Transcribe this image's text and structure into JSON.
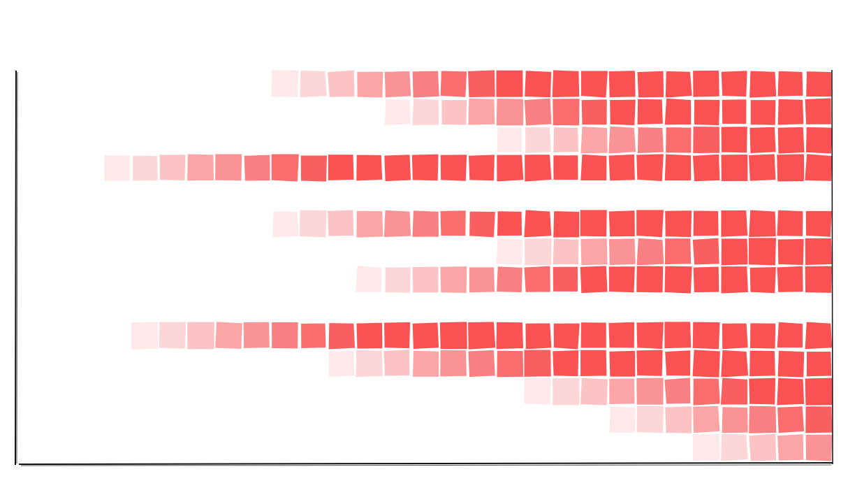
{
  "chart_data": {
    "type": "heatmap",
    "title": "",
    "xlabel": "",
    "ylabel": "",
    "grid": false,
    "legend": "none",
    "style": "hand-drawn",
    "color": "#fa5252",
    "columns": 26,
    "rows": [
      {
        "start": 6,
        "fade": 8
      },
      {
        "start": 10,
        "fade": 8
      },
      {
        "start": 14,
        "fade": 8
      },
      {
        "start": 0,
        "fade": 8
      },
      {
        "start": null,
        "fade": 0
      },
      {
        "start": 6,
        "fade": 8
      },
      {
        "start": 14,
        "fade": 8
      },
      {
        "start": 9,
        "fade": 8
      },
      {
        "start": null,
        "fade": 0
      },
      {
        "start": 1,
        "fade": 8
      },
      {
        "start": 8,
        "fade": 8
      },
      {
        "start": 15,
        "fade": 8
      },
      {
        "start": 18,
        "fade": 8
      },
      {
        "start": 21,
        "fade": 8
      }
    ]
  }
}
